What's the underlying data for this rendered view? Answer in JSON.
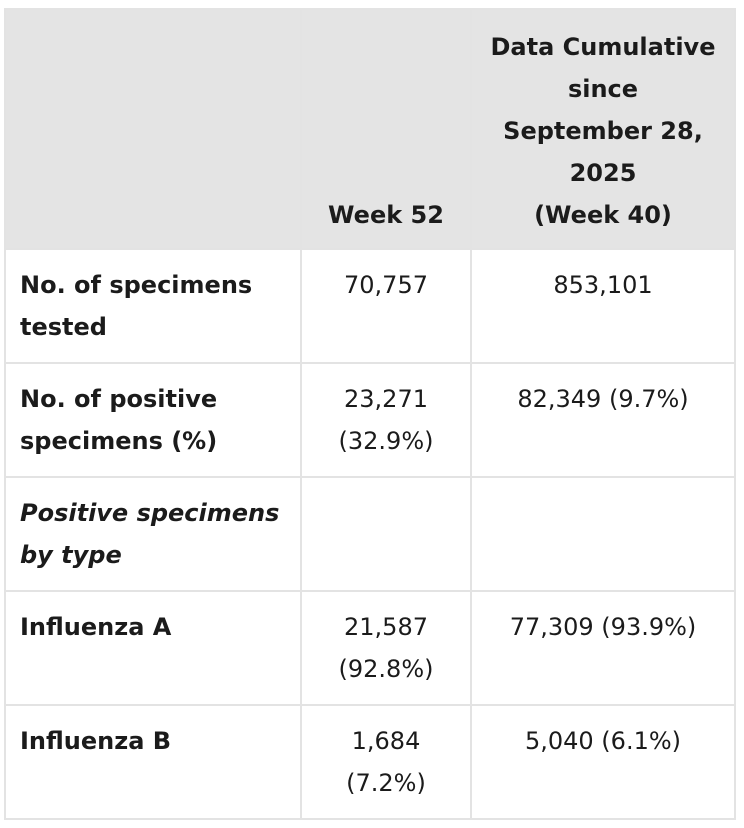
{
  "table": {
    "headers": {
      "row_label": "",
      "week": "Week 52",
      "cumulative_lines": [
        "Data Cumulative",
        "since",
        "September 28,",
        "2025",
        "(Week 40)"
      ]
    },
    "rows": [
      {
        "label_lines": [
          "No. of specimens",
          "tested"
        ],
        "italic": false,
        "week_lines": [
          "70,757"
        ],
        "cumulative": "853,101"
      },
      {
        "label_lines": [
          "No. of positive",
          "specimens (%)"
        ],
        "italic": false,
        "week_lines": [
          "23,271",
          "(32.9%)"
        ],
        "cumulative": "82,349 (9.7%)"
      },
      {
        "label_lines": [
          "Positive specimens",
          "by type"
        ],
        "italic": true,
        "week_lines": [],
        "cumulative": ""
      },
      {
        "label_lines": [
          "Influenza A"
        ],
        "italic": false,
        "week_lines": [
          "21,587",
          "(92.8%)"
        ],
        "cumulative": "77,309 (93.9%)"
      },
      {
        "label_lines": [
          "Influenza B"
        ],
        "italic": false,
        "week_lines": [
          "1,684",
          "(7.2%)"
        ],
        "cumulative": "5,040 (6.1%)"
      }
    ]
  },
  "colors": {
    "header_bg": "#e4e4e4",
    "border": "#e3e3e3",
    "text": "#1b1b1b"
  }
}
